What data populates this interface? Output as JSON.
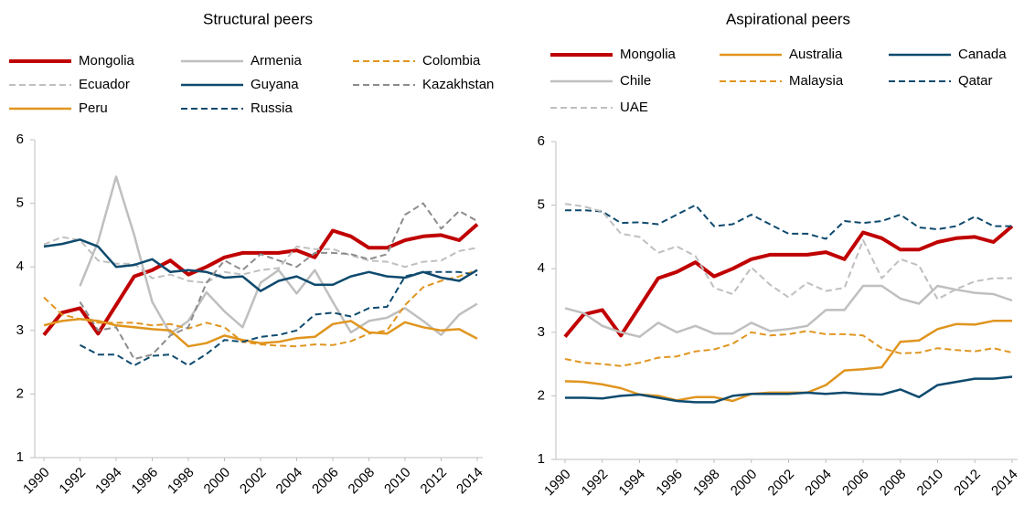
{
  "chart_data": [
    {
      "type": "line",
      "title": "Structural peers",
      "legend": "top",
      "legend_columns": 3,
      "grid": false,
      "x": [
        1990,
        1991,
        1992,
        1993,
        1994,
        1995,
        1996,
        1997,
        1998,
        1999,
        2000,
        2001,
        2002,
        2003,
        2004,
        2005,
        2006,
        2007,
        2008,
        2009,
        2010,
        2011,
        2012,
        2013,
        2014
      ],
      "xlim": [
        1990,
        2014
      ],
      "xticks": [
        1990,
        1992,
        1994,
        1996,
        1998,
        2000,
        2002,
        2004,
        2006,
        2008,
        2010,
        2012,
        2014
      ],
      "ylim": [
        1,
        6
      ],
      "yticks": [
        1,
        2,
        3,
        4,
        5,
        6
      ],
      "series": [
        {
          "name": "Mongolia",
          "color": "#c00000",
          "width": 4,
          "dash": false,
          "values": [
            2.93,
            3.28,
            3.35,
            2.95,
            3.4,
            3.85,
            3.95,
            4.1,
            3.88,
            4.0,
            4.15,
            4.22,
            4.22,
            4.22,
            4.26,
            4.15,
            4.57,
            4.48,
            4.3,
            4.3,
            4.42,
            4.48,
            4.5,
            4.42,
            4.67
          ]
        },
        {
          "name": "Armenia",
          "color": "#bfbfbf",
          "width": 2.5,
          "dash": false,
          "values": [
            null,
            null,
            3.7,
            4.4,
            5.42,
            4.5,
            3.45,
            2.95,
            3.15,
            3.6,
            3.3,
            3.05,
            3.75,
            3.95,
            3.58,
            3.95,
            3.45,
            2.97,
            3.15,
            3.2,
            3.35,
            3.15,
            2.93,
            3.25,
            3.42
          ]
        },
        {
          "name": "Colombia",
          "color": "#e0951f",
          "width": 2,
          "dash": true,
          "values": [
            3.52,
            3.25,
            3.18,
            3.12,
            3.12,
            3.12,
            3.08,
            3.1,
            3.03,
            3.12,
            3.05,
            2.82,
            2.78,
            2.76,
            2.75,
            2.78,
            2.77,
            2.83,
            2.95,
            3.0,
            3.4,
            3.68,
            3.78,
            3.85,
            3.95
          ]
        },
        {
          "name": "Ecuador",
          "color": "#bfbfbf",
          "width": 2,
          "dash": true,
          "values": [
            4.35,
            4.47,
            4.42,
            4.1,
            4.05,
            4.05,
            3.82,
            3.88,
            3.78,
            3.75,
            3.92,
            3.88,
            3.95,
            3.98,
            4.32,
            4.28,
            4.28,
            4.18,
            4.1,
            4.08,
            4.0,
            4.08,
            4.1,
            4.25,
            4.3
          ]
        },
        {
          "name": "Guyana",
          "color": "#0e4a6e",
          "width": 2.5,
          "dash": false,
          "values": [
            4.32,
            4.36,
            4.43,
            4.32,
            4.0,
            4.03,
            4.12,
            3.92,
            3.95,
            3.92,
            3.83,
            3.85,
            3.62,
            3.78,
            3.85,
            3.72,
            3.72,
            3.85,
            3.92,
            3.85,
            3.83,
            3.92,
            3.83,
            3.78,
            3.95
          ]
        },
        {
          "name": "Kazakhstan",
          "color": "#8c8c8c",
          "width": 2,
          "dash": true,
          "values": [
            null,
            null,
            3.45,
            3.0,
            3.05,
            2.55,
            2.62,
            2.92,
            3.05,
            3.75,
            4.1,
            3.95,
            4.2,
            4.1,
            4.0,
            4.22,
            4.22,
            4.2,
            4.12,
            4.2,
            4.82,
            5.0,
            4.6,
            4.88,
            4.72
          ]
        },
        {
          "name": "Peru",
          "color": "#e0951f",
          "width": 2.5,
          "dash": false,
          "values": [
            3.08,
            3.15,
            3.18,
            3.15,
            3.08,
            3.05,
            3.02,
            3.0,
            2.75,
            2.8,
            2.92,
            2.85,
            2.8,
            2.82,
            2.88,
            2.9,
            3.1,
            3.15,
            2.97,
            2.95,
            3.13,
            3.05,
            3.0,
            3.02,
            2.87
          ]
        },
        {
          "name": "Russia",
          "color": "#0e4a6e",
          "width": 2,
          "dash": true,
          "values": [
            null,
            null,
            2.77,
            2.62,
            2.62,
            2.45,
            2.6,
            2.62,
            2.45,
            2.63,
            2.85,
            2.82,
            2.9,
            2.93,
            3.0,
            3.25,
            3.28,
            3.22,
            3.35,
            3.37,
            3.85,
            3.92,
            3.92,
            3.92,
            3.87
          ]
        }
      ]
    },
    {
      "type": "line",
      "title": "Aspirational peers",
      "legend": "top",
      "legend_columns": 3,
      "grid": false,
      "x": [
        1990,
        1991,
        1992,
        1993,
        1994,
        1995,
        1996,
        1997,
        1998,
        1999,
        2000,
        2001,
        2002,
        2003,
        2004,
        2005,
        2006,
        2007,
        2008,
        2009,
        2010,
        2011,
        2012,
        2013,
        2014
      ],
      "xlim": [
        1990,
        2014
      ],
      "xticks": [
        1990,
        1992,
        1994,
        1996,
        1998,
        2000,
        2002,
        2004,
        2006,
        2008,
        2010,
        2012,
        2014
      ],
      "ylim": [
        1,
        6
      ],
      "yticks": [
        1,
        2,
        3,
        4,
        5,
        6
      ],
      "series": [
        {
          "name": "Mongolia",
          "color": "#c00000",
          "width": 4,
          "dash": false,
          "values": [
            2.93,
            3.28,
            3.35,
            2.95,
            3.4,
            3.85,
            3.95,
            4.1,
            3.88,
            4.0,
            4.15,
            4.22,
            4.22,
            4.22,
            4.26,
            4.15,
            4.57,
            4.48,
            4.3,
            4.3,
            4.42,
            4.48,
            4.5,
            4.42,
            4.67
          ]
        },
        {
          "name": "Australia",
          "color": "#e0951f",
          "width": 2.5,
          "dash": false,
          "values": [
            2.23,
            2.22,
            2.18,
            2.12,
            2.02,
            2.0,
            1.93,
            1.98,
            1.98,
            1.92,
            2.03,
            2.05,
            2.05,
            2.05,
            2.17,
            2.4,
            2.42,
            2.45,
            2.85,
            2.87,
            3.05,
            3.13,
            3.12,
            3.18,
            3.18
          ]
        },
        {
          "name": "Canada",
          "color": "#0e4a6e",
          "width": 2.5,
          "dash": false,
          "values": [
            1.97,
            1.97,
            1.96,
            2.0,
            2.02,
            1.97,
            1.92,
            1.9,
            1.9,
            2.0,
            2.03,
            2.03,
            2.03,
            2.05,
            2.03,
            2.05,
            2.03,
            2.02,
            2.1,
            1.98,
            2.17,
            2.22,
            2.27,
            2.27,
            2.3
          ]
        },
        {
          "name": "Chile",
          "color": "#bfbfbf",
          "width": 2.5,
          "dash": false,
          "values": [
            3.38,
            3.3,
            3.1,
            3.0,
            2.93,
            3.15,
            3.0,
            3.1,
            2.98,
            2.98,
            3.15,
            3.02,
            3.05,
            3.1,
            3.35,
            3.35,
            3.73,
            3.73,
            3.53,
            3.45,
            3.73,
            3.67,
            3.62,
            3.6,
            3.5
          ]
        },
        {
          "name": "Malaysia",
          "color": "#e0951f",
          "width": 2,
          "dash": true,
          "values": [
            2.58,
            2.52,
            2.5,
            2.47,
            2.52,
            2.6,
            2.62,
            2.7,
            2.73,
            2.82,
            3.0,
            2.95,
            2.97,
            3.02,
            2.97,
            2.97,
            2.95,
            2.75,
            2.67,
            2.68,
            2.75,
            2.72,
            2.7,
            2.75,
            2.68
          ]
        },
        {
          "name": "Qatar",
          "color": "#0e4a6e",
          "width": 2,
          "dash": true,
          "values": [
            4.92,
            4.92,
            4.9,
            4.72,
            4.73,
            4.7,
            4.85,
            5.0,
            4.67,
            4.7,
            4.85,
            4.7,
            4.55,
            4.55,
            4.47,
            4.75,
            4.72,
            4.75,
            4.85,
            4.65,
            4.62,
            4.67,
            4.82,
            4.67,
            4.67
          ]
        },
        {
          "name": "UAE",
          "color": "#bfbfbf",
          "width": 2,
          "dash": true,
          "values": [
            5.02,
            4.98,
            4.9,
            4.55,
            4.5,
            4.25,
            4.35,
            4.2,
            3.7,
            3.6,
            4.02,
            3.75,
            3.55,
            3.78,
            3.65,
            3.7,
            4.45,
            3.85,
            4.15,
            4.05,
            3.52,
            3.68,
            3.8,
            3.85,
            3.85
          ]
        }
      ]
    }
  ]
}
